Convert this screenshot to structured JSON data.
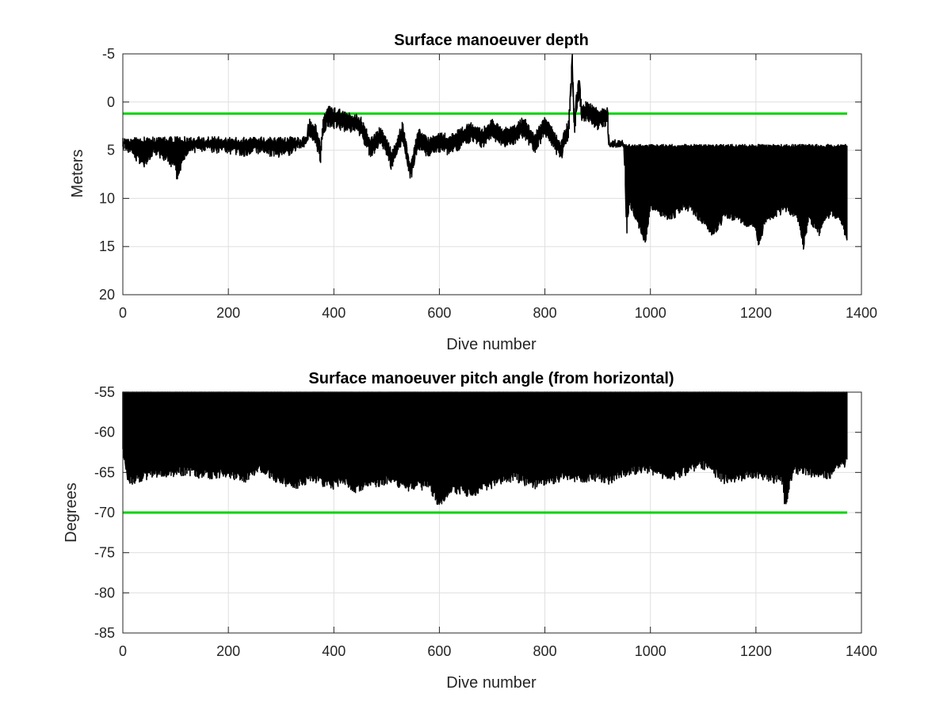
{
  "chart_data": [
    {
      "type": "line",
      "title": "Surface manoeuver depth",
      "xlabel": "Dive number",
      "ylabel": "Meters",
      "xlim": [
        0,
        1400
      ],
      "ylim": [
        -5,
        20
      ],
      "y_reversed": true,
      "xticks": [
        "0",
        "200",
        "400",
        "600",
        "800",
        "1000",
        "1200",
        "1400"
      ],
      "yticks": [
        "-5",
        "0",
        "5",
        "10",
        "15",
        "20"
      ],
      "grid": true,
      "colors": {
        "data": "#000000",
        "threshold": "#00d400"
      },
      "threshold": 1.2,
      "x_extent": [
        0,
        1373
      ],
      "series": [
        {
          "values": [
            [
              0,
              4.5
            ],
            [
              20,
              5.5
            ],
            [
              40,
              6.5
            ],
            [
              60,
              5.0
            ],
            [
              80,
              5.8
            ],
            [
              100,
              6.8
            ],
            [
              102,
              8.0
            ],
            [
              120,
              5.2
            ],
            [
              150,
              4.8
            ],
            [
              200,
              5.0
            ],
            [
              230,
              5.3
            ],
            [
              250,
              4.9
            ],
            [
              300,
              5.5
            ],
            [
              320,
              5.2
            ],
            [
              340,
              4.5
            ],
            [
              355,
              3.5
            ],
            [
              365,
              4.0
            ],
            [
              375,
              6.0
            ],
            [
              380,
              3.0
            ],
            [
              390,
              2.2
            ],
            [
              410,
              2.5
            ],
            [
              430,
              2.8
            ],
            [
              450,
              3.2
            ],
            [
              470,
              5.5
            ],
            [
              490,
              4.2
            ],
            [
              510,
              6.8
            ],
            [
              530,
              3.8
            ],
            [
              545,
              8.0
            ],
            [
              560,
              4.5
            ],
            [
              580,
              5.5
            ],
            [
              600,
              4.8
            ],
            [
              620,
              5.2
            ],
            [
              640,
              4.5
            ],
            [
              660,
              3.8
            ],
            [
              680,
              4.6
            ],
            [
              700,
              3.5
            ],
            [
              720,
              4.4
            ],
            [
              740,
              4.2
            ],
            [
              760,
              3.3
            ],
            [
              780,
              5.0
            ],
            [
              800,
              3.2
            ],
            [
              830,
              5.8
            ],
            [
              845,
              3.5
            ],
            [
              852,
              -3.5
            ],
            [
              856,
              3.8
            ],
            [
              860,
              0.5
            ],
            [
              865,
              -0.8
            ],
            [
              870,
              2.0
            ],
            [
              880,
              1.6
            ],
            [
              900,
              2.5
            ],
            [
              918,
              2.2
            ],
            [
              922,
              4.2
            ],
            [
              950,
              4.4
            ],
            [
              955,
              13.5
            ],
            [
              960,
              10.5
            ],
            [
              980,
              13.0
            ],
            [
              990,
              14.5
            ],
            [
              1000,
              11.0
            ],
            [
              1020,
              11.5
            ],
            [
              1040,
              12.0
            ],
            [
              1060,
              10.8
            ],
            [
              1080,
              11.2
            ],
            [
              1100,
              12.5
            ],
            [
              1120,
              13.8
            ],
            [
              1140,
              11.8
            ],
            [
              1160,
              12.0
            ],
            [
              1180,
              12.5
            ],
            [
              1200,
              13.0
            ],
            [
              1205,
              14.8
            ],
            [
              1220,
              12.0
            ],
            [
              1240,
              11.5
            ],
            [
              1260,
              11.0
            ],
            [
              1280,
              12.2
            ],
            [
              1290,
              15.0
            ],
            [
              1300,
              12.0
            ],
            [
              1320,
              13.5
            ],
            [
              1340,
              11.5
            ],
            [
              1360,
              12.0
            ],
            [
              1373,
              14.5
            ]
          ]
        }
      ]
    },
    {
      "type": "line",
      "title": "Surface manoeuver pitch angle (from horizontal)",
      "xlabel": "Dive number",
      "ylabel": "Degrees",
      "xlim": [
        0,
        1400
      ],
      "ylim": [
        -85,
        -55
      ],
      "y_reversed": false,
      "xticks": [
        "0",
        "200",
        "400",
        "600",
        "800",
        "1000",
        "1200",
        "1400"
      ],
      "yticks": [
        "-55",
        "-60",
        "-65",
        "-70",
        "-75",
        "-80",
        "-85"
      ],
      "grid": true,
      "colors": {
        "data": "#000000",
        "threshold": "#00d400"
      },
      "threshold": -70,
      "x_extent": [
        0,
        1373
      ],
      "series": [
        {
          "values": [
            [
              0,
              -62.0
            ],
            [
              10,
              -66.0
            ],
            [
              40,
              -65.5
            ],
            [
              80,
              -65.0
            ],
            [
              120,
              -64.8
            ],
            [
              150,
              -65.3
            ],
            [
              200,
              -65.0
            ],
            [
              230,
              -65.8
            ],
            [
              260,
              -64.5
            ],
            [
              300,
              -66.0
            ],
            [
              330,
              -66.5
            ],
            [
              360,
              -65.5
            ],
            [
              380,
              -66.3
            ],
            [
              400,
              -66.5
            ],
            [
              420,
              -66.0
            ],
            [
              440,
              -67.0
            ],
            [
              460,
              -66.5
            ],
            [
              500,
              -66.0
            ],
            [
              540,
              -66.8
            ],
            [
              580,
              -66.5
            ],
            [
              600,
              -69.0
            ],
            [
              620,
              -67.0
            ],
            [
              660,
              -67.5
            ],
            [
              700,
              -66.5
            ],
            [
              740,
              -65.5
            ],
            [
              780,
              -66.5
            ],
            [
              800,
              -66.0
            ],
            [
              840,
              -65.5
            ],
            [
              860,
              -65.8
            ],
            [
              900,
              -65.5
            ],
            [
              920,
              -66.0
            ],
            [
              950,
              -65.0
            ],
            [
              990,
              -64.5
            ],
            [
              1040,
              -65.5
            ],
            [
              1100,
              -64.0
            ],
            [
              1140,
              -65.8
            ],
            [
              1200,
              -65.2
            ],
            [
              1250,
              -66.0
            ],
            [
              1256,
              -69.5
            ],
            [
              1270,
              -64.5
            ],
            [
              1300,
              -65.0
            ],
            [
              1340,
              -65.2
            ],
            [
              1373,
              -63.5
            ]
          ]
        }
      ]
    }
  ]
}
